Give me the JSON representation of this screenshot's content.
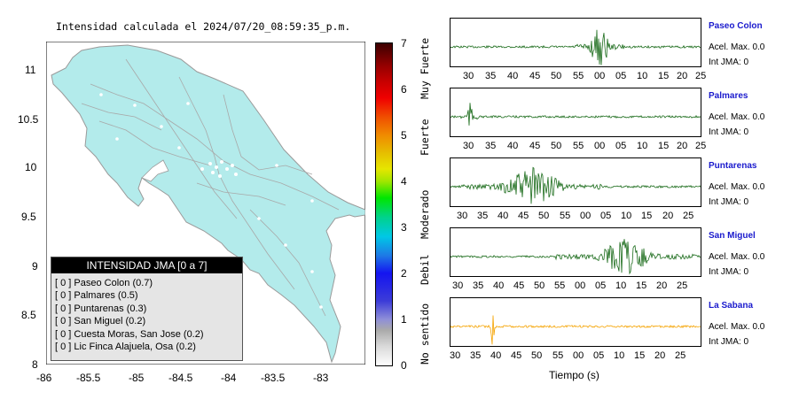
{
  "page": {
    "map_title": "Intensidad calculada el 2024/07/20_08:59:35_p.m.",
    "time_axis_label": "Tiempo (s)"
  },
  "colors": {
    "land": "#b3ebeb",
    "border": "#9a9a9a",
    "trace_green": "#1a6b1a",
    "trace_orange": "#f5a300",
    "station_name": "#1a1acd"
  },
  "legend": {
    "title": "INTENSIDAD JMA [0 a 7]",
    "items": [
      "[ 0 ]  Paseo Colon (0.7)",
      "[ 0 ]  Palmares (0.5)",
      "[ 0 ]  Puntarenas (0.3)",
      "[ 0 ]  San Miguel (0.2)",
      "[ 0 ]  Cuesta Moras, San Jose (0.2)",
      "[ 0 ]  Lic Finca Alajuela, Osa (0.2)"
    ]
  },
  "colorbar": {
    "ticks": [
      "0",
      "1",
      "2",
      "3",
      "4",
      "5",
      "6",
      "7"
    ],
    "words": [
      "No sentido",
      "Debil",
      "Moderado",
      "Fuerte",
      "Muy Fuerte"
    ]
  },
  "stations": [
    {
      "name": "Paseo Colon",
      "accel": "Acel. Max. 0.0",
      "int": "Int JMA: 0"
    },
    {
      "name": "Palmares",
      "accel": "Acel. Max. 0.0",
      "int": "Int JMA: 0"
    },
    {
      "name": "Puntarenas",
      "accel": "Acel. Max. 0.0",
      "int": "Int JMA: 0"
    },
    {
      "name": "San Miguel",
      "accel": "Acel. Max. 0.0",
      "int": "Int JMA: 0"
    },
    {
      "name": "La Sabana",
      "accel": "Acel. Max. 0.0",
      "int": "Int JMA: 0"
    }
  ],
  "chart_data": [
    {
      "type": "scatter",
      "title": "Intensidad calculada el 2024/07/20_08:59:35_p.m.",
      "xlim": [
        -86,
        -82.5
      ],
      "ylim": [
        8,
        11.3
      ],
      "x_ticks": [
        "-86",
        "-85.5",
        "-85",
        "-84.5",
        "-84",
        "-83.5",
        "-83"
      ],
      "y_ticks": [
        "8",
        "8.5",
        "9",
        "9.5",
        "10",
        "10.5",
        "11"
      ]
    },
    {
      "type": "line",
      "series": [
        {
          "name": "Paseo Colon",
          "x_ticks": [
            "30",
            "35",
            "40",
            "45",
            "50",
            "55",
            "00",
            "05",
            "10",
            "15",
            "20",
            "25"
          ],
          "burst_at": "00"
        },
        {
          "name": "Palmares",
          "x_ticks": [
            "30",
            "35",
            "40",
            "45",
            "50",
            "55",
            "00",
            "05",
            "10",
            "15",
            "20",
            "25"
          ],
          "burst_at": "32"
        },
        {
          "name": "Puntarenas",
          "x_ticks": [
            "30",
            "35",
            "40",
            "45",
            "50",
            "55",
            "00",
            "05",
            "10",
            "15",
            "20",
            "25"
          ],
          "burst_at": "47"
        },
        {
          "name": "San Miguel",
          "x_ticks": [
            "30",
            "35",
            "40",
            "45",
            "50",
            "55",
            "00",
            "05",
            "10",
            "15",
            "20",
            "25"
          ],
          "burst_at": "10"
        },
        {
          "name": "La Sabana",
          "x_ticks": [
            "30",
            "35",
            "40",
            "45",
            "50",
            "55",
            "00",
            "05",
            "10",
            "15",
            "20",
            "25"
          ],
          "burst_at": "39"
        }
      ]
    }
  ]
}
